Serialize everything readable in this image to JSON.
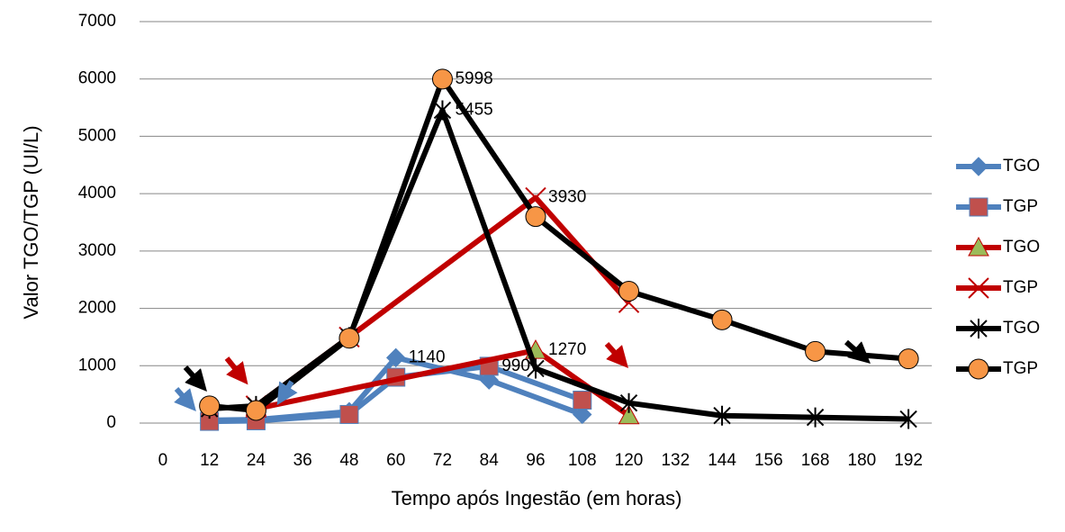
{
  "chart_data": {
    "type": "line",
    "x_label": "Tempo após Ingestão (em horas)",
    "y_label": "Valor TGO/TGP (UI/L)",
    "xlim": [
      -6,
      198
    ],
    "xticks": [
      0,
      12,
      24,
      36,
      48,
      60,
      72,
      84,
      96,
      108,
      120,
      132,
      144,
      156,
      168,
      180,
      192
    ],
    "ylim": [
      0,
      7000
    ],
    "yticks": [
      0,
      1000,
      2000,
      3000,
      4000,
      5000,
      6000,
      7000
    ],
    "grid": true,
    "legend": "right",
    "series": [
      {
        "name": "TGO",
        "color": "#4f81bd",
        "marker": "diamond",
        "marker_color": "#4f81bd",
        "x": [
          12,
          24,
          48,
          60,
          84,
          108
        ],
        "values": [
          50,
          60,
          200,
          1140,
          750,
          150
        ],
        "value_labels": [
          null,
          null,
          null,
          "1140",
          null,
          null
        ]
      },
      {
        "name": "TGP",
        "color": "#4f81bd",
        "marker": "square",
        "marker_color": "#c0504d",
        "x": [
          12,
          24,
          48,
          60,
          84,
          108
        ],
        "values": [
          30,
          40,
          150,
          800,
          990,
          400
        ],
        "value_labels": [
          null,
          null,
          null,
          null,
          "990",
          null
        ]
      },
      {
        "name": "TGO",
        "color": "#c00000",
        "marker": "triangle",
        "marker_color": "#9bbb59",
        "x": [
          24,
          96,
          120
        ],
        "values": [
          250,
          1270,
          130
        ],
        "value_labels": [
          null,
          "1270",
          null
        ]
      },
      {
        "name": "TGP",
        "color": "#c00000",
        "marker": "x",
        "marker_color": "#c00000",
        "x": [
          24,
          48,
          96,
          120
        ],
        "values": [
          300,
          1500,
          3930,
          2100
        ],
        "value_labels": [
          null,
          null,
          "3930",
          null
        ]
      },
      {
        "name": "TGO",
        "color": "#000000",
        "marker": "star",
        "marker_color": "#000000",
        "x": [
          12,
          24,
          48,
          72,
          96,
          120,
          144,
          168,
          192
        ],
        "values": [
          250,
          300,
          1500,
          5455,
          950,
          350,
          130,
          100,
          70
        ],
        "value_labels": [
          null,
          null,
          null,
          "5455",
          null,
          null,
          null,
          null,
          null
        ]
      },
      {
        "name": "TGP",
        "color": "#000000",
        "marker": "circle",
        "marker_color": "#f79646",
        "x": [
          12,
          24,
          48,
          72,
          96,
          120,
          144,
          168,
          192
        ],
        "values": [
          300,
          220,
          1480,
          5998,
          3600,
          2300,
          1800,
          1250,
          1120
        ],
        "value_labels": [
          null,
          null,
          null,
          "5998",
          null,
          null,
          null,
          null,
          null
        ]
      }
    ]
  }
}
